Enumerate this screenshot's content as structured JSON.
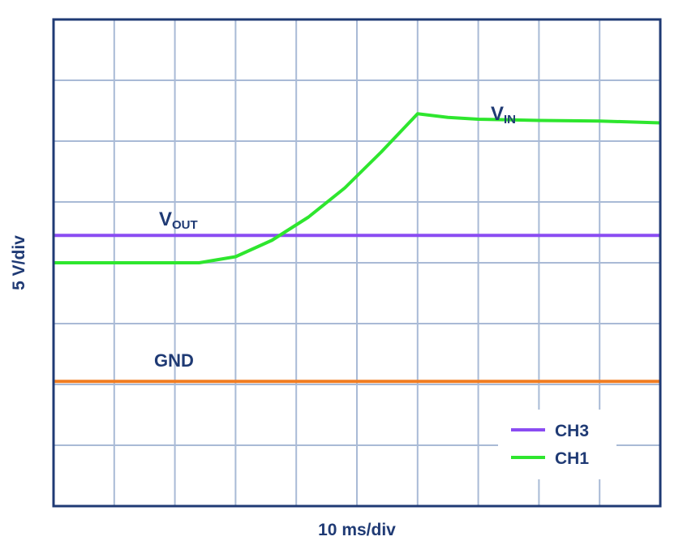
{
  "chart_data": {
    "type": "line",
    "title": "",
    "xlabel": "10 ms/div",
    "ylabel": "5 V/div",
    "x_divisions": 10,
    "y_divisions": 8,
    "grid": true,
    "legend_placement": "bottom-right",
    "series": [
      {
        "name": "CH3",
        "label": "V",
        "label_sub": "OUT",
        "color": "#8a4cf2",
        "x": [
          0,
          10
        ],
        "y": [
          4.45,
          4.45
        ]
      },
      {
        "name": "CH1",
        "label": "V",
        "label_sub": "IN",
        "color": "#2ee62e",
        "x": [
          0,
          2.4,
          3.0,
          3.6,
          4.2,
          4.8,
          5.4,
          6.0,
          6.5,
          7.0,
          8.0,
          9.0,
          10.0
        ],
        "y": [
          4.0,
          4.0,
          4.1,
          4.37,
          4.75,
          5.23,
          5.82,
          6.45,
          6.39,
          6.36,
          6.34,
          6.33,
          6.3
        ]
      },
      {
        "name": "GND",
        "label": "GND",
        "color": "#f07d22",
        "x": [
          0,
          10
        ],
        "y": [
          2.05,
          2.05
        ]
      }
    ],
    "legend": [
      "CH3",
      "CH1"
    ]
  },
  "style": {
    "frame_color": "#1f3a74",
    "grid_color": "#a9bad6",
    "text_color": "#1f3a74"
  }
}
